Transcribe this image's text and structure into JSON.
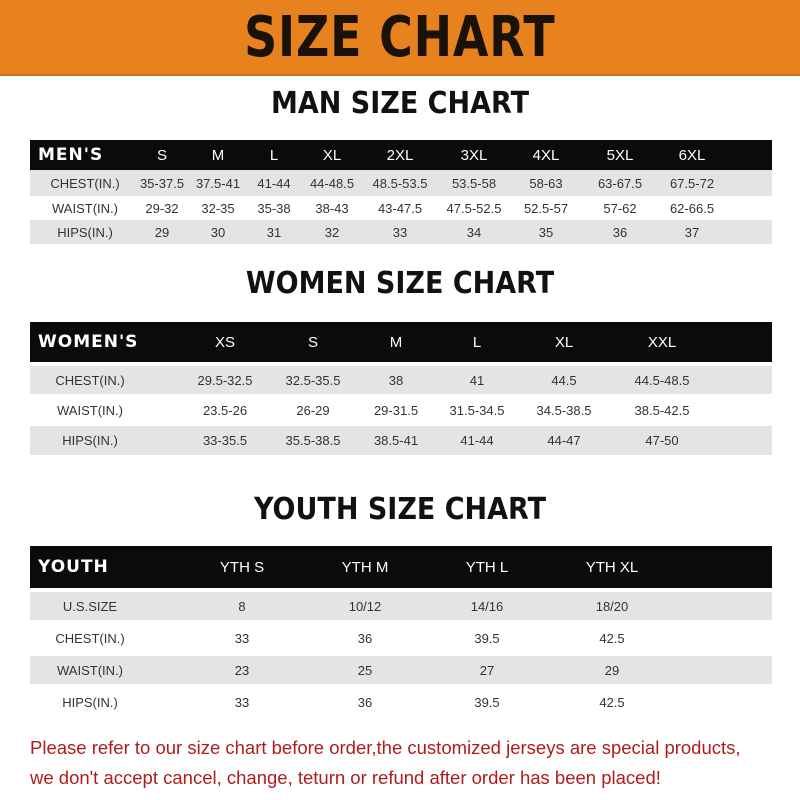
{
  "banner_title": "SIZE CHART",
  "men": {
    "title": "MAN SIZE CHART",
    "header": [
      "MEN'S",
      "S",
      "M",
      "L",
      "XL",
      "2XL",
      "3XL",
      "4XL",
      "5XL",
      "6XL"
    ],
    "rows": [
      [
        "CHEST(IN.)",
        "35-37.5",
        "37.5-41",
        "41-44",
        "44-48.5",
        "48.5-53.5",
        "53.5-58",
        "58-63",
        "63-67.5",
        "67.5-72"
      ],
      [
        "WAIST(IN.)",
        "29-32",
        "32-35",
        "35-38",
        "38-43",
        "43-47.5",
        "47.5-52.5",
        "52.5-57",
        "57-62",
        "62-66.5"
      ],
      [
        "HIPS(IN.)",
        "29",
        "30",
        "31",
        "32",
        "33",
        "34",
        "35",
        "36",
        "37"
      ]
    ]
  },
  "women": {
    "title": "WOMEN SIZE CHART",
    "header": [
      "WOMEN'S",
      "XS",
      "S",
      "M",
      "L",
      "XL",
      "XXL"
    ],
    "rows": [
      [
        "CHEST(IN.)",
        "29.5-32.5",
        "32.5-35.5",
        "38",
        "41",
        "44.5",
        "44.5-48.5"
      ],
      [
        "WAIST(IN.)",
        "23.5-26",
        "26-29",
        "29-31.5",
        "31.5-34.5",
        "34.5-38.5",
        "38.5-42.5"
      ],
      [
        "HIPS(IN.)",
        "33-35.5",
        "35.5-38.5",
        "38.5-41",
        "41-44",
        "44-47",
        "47-50"
      ]
    ]
  },
  "youth": {
    "title": "YOUTH SIZE CHART",
    "header": [
      "YOUTH",
      "YTH S",
      "YTH M",
      "YTH L",
      "YTH XL"
    ],
    "rows": [
      [
        "U.S.SIZE",
        "8",
        "10/12",
        "14/16",
        "18/20"
      ],
      [
        "CHEST(IN.)",
        "33",
        "36",
        "39.5",
        "42.5"
      ],
      [
        "WAIST(IN.)",
        "23",
        "25",
        "27",
        "29"
      ],
      [
        "HIPS(IN.)",
        "33",
        "36",
        "39.5",
        "42.5"
      ]
    ]
  },
  "notice": [
    "Please refer to our size chart before order,the customized jerseys are special products,",
    "we don't accept cancel, change, teturn or refund after order has been placed!"
  ],
  "colors": {
    "banner": "#e8821e",
    "header_row": "#0c0a0a",
    "stripe": "#e4e4e4",
    "notice": "#b01c1c"
  }
}
